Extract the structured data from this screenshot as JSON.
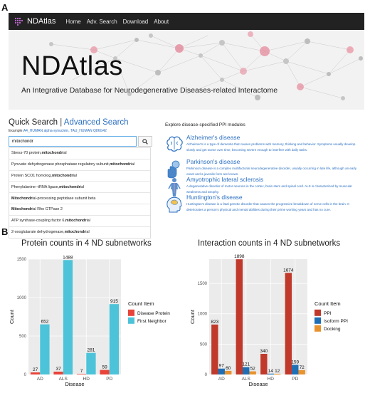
{
  "panels": {
    "a": "A",
    "b": "B"
  },
  "navbar": {
    "brand": "NDAtlas",
    "items": [
      {
        "label": "Home"
      },
      {
        "label": "Adv. Search"
      },
      {
        "label": "Download"
      },
      {
        "label": "About"
      }
    ]
  },
  "hero": {
    "title": "NDAtlas",
    "subtitle": "An Integrative Database for Neurodegenerative Diseases-related Interactome"
  },
  "quick_search": {
    "title": "Quick Search",
    "separator": " | ",
    "advanced_link": "Advanced Search",
    "example_prefix": "Example:",
    "example_links": "A4_HUMAN alpha-synuclein, TAU_HUMAN Q86G42",
    "input_value": "mitochondr",
    "suggestions": [
      {
        "pre": "Stress-70  protein, ",
        "bold": "mitochondr",
        "post": "ial"
      },
      {
        "pre": "Pyruvate dehydrogenase phosphatase regulatory subunit, ",
        "bold": "mitochondr",
        "post": "ial"
      },
      {
        "pre": "Protein  SCO1 homolog, ",
        "bold": "mitochondr",
        "post": "ial"
      },
      {
        "pre": "Phenylalanine--tRNA  ligase, ",
        "bold": "mitochondr",
        "post": "ial"
      },
      {
        "pre": "",
        "bold": "Mitochondr",
        "post": "ial-processing peptidase subunit beta"
      },
      {
        "pre": "",
        "bold": "Mitochondr",
        "post": "ial Rho GTPase 2"
      },
      {
        "pre": "ATP synthase-coupling factor 6, ",
        "bold": "mitochondr",
        "post": "ial"
      },
      {
        "pre": "2-oxoglutarate  dehydrogenase, ",
        "bold": "mitochondr",
        "post": "ial"
      }
    ]
  },
  "modules": {
    "header": "Explore disease-specified PPI modules",
    "items": [
      {
        "name": "Alzheimer's disease",
        "icon": "brain-icon",
        "desc": "Alzheimer's is a type of dementia that causes problems with memory, thinking and behavior. Symptoms usually develop slowly and get worse over time, becoming severe enough to interfere with daily tasks."
      },
      {
        "name": "Parkinson's disease",
        "icon": "hand-brain-icon",
        "desc": "Parkinson disease is a complex multifactorial neurodegenerative disorder, usually occurring in late life, although an early onset and a juvenile form are known."
      },
      {
        "name": "Amyotrophic lateral sclerosis",
        "icon": "body-icon",
        "desc": "A degenerative disorder of motor neurons in the cortex, brain stem and spinal cord. ALS is characterized by muscular weakness and atrophy."
      },
      {
        "name": "Huntington's disease",
        "icon": "head-icon",
        "desc": "Huntington's disease is a fatal genetic disorder that causes the progressive breakdown of nerve cells in the brain. It deteriorates a person's physical and mental abilities during their prime working years and has no cure."
      }
    ]
  },
  "chart_data": [
    {
      "type": "bar",
      "title": "Protein counts in 4 ND subnetworks",
      "xlabel": "Disease",
      "ylabel": "Count",
      "categories": [
        "AD",
        "ALS",
        "HD",
        "PD"
      ],
      "ylim": [
        0,
        1500
      ],
      "yticks": [
        0,
        500,
        1000,
        1500
      ],
      "legend_title": "Count Item",
      "legend_position": "right",
      "series": [
        {
          "name": "Disease Protein",
          "color": "#e8443a",
          "values": [
            27,
            37,
            7,
            59
          ]
        },
        {
          "name": "First Neighbor",
          "color": "#4cc3d9",
          "values": [
            652,
            1488,
            281,
            915
          ]
        }
      ]
    },
    {
      "type": "bar",
      "title": "Interaction counts in 4 ND subnetworks",
      "xlabel": "Disease",
      "ylabel": "Count",
      "categories": [
        "AD",
        "ALS",
        "HD",
        "PD"
      ],
      "ylim": [
        0,
        1900
      ],
      "yticks": [
        0,
        500,
        1000,
        1500
      ],
      "legend_title": "Count Item",
      "legend_position": "right",
      "series": [
        {
          "name": "PPI",
          "color": "#c0392b",
          "values": [
            823,
            1898,
            340,
            1674
          ]
        },
        {
          "name": "Isoform PPI",
          "color": "#1f6fb5",
          "values": [
            97,
            121,
            14,
            159
          ]
        },
        {
          "name": "Docking",
          "color": "#e8932e",
          "values": [
            60,
            52,
            12,
            72
          ]
        }
      ]
    }
  ]
}
